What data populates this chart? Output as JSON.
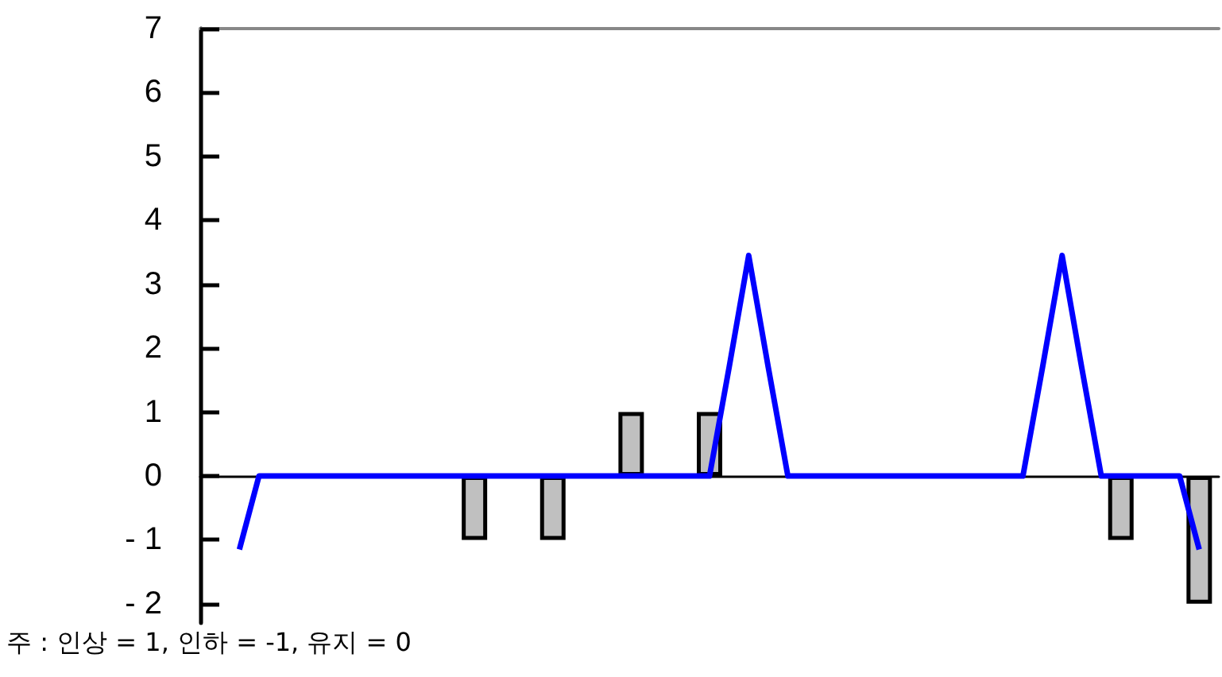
{
  "chart_data": {
    "type": "bar",
    "categories": [
      null,
      null,
      null,
      null,
      null,
      null,
      null,
      null,
      null,
      null,
      null,
      null,
      null,
      null,
      null,
      null,
      null,
      null,
      null,
      null,
      null,
      null,
      null,
      null,
      null,
      null,
      null,
      null,
      null,
      null,
      null,
      null,
      null,
      null,
      null,
      null,
      null,
      null,
      null,
      null,
      null,
      null,
      null,
      null,
      null,
      null,
      null,
      null,
      null,
      null,
      null,
      null,
      null
    ],
    "ylim": [
      -2.3,
      7
    ],
    "yticks": [
      {
        "value": -2,
        "label": "- 2"
      },
      {
        "value": -1,
        "label": "- 1"
      },
      0,
      1,
      2,
      3,
      4,
      5,
      6,
      7
    ],
    "tick_labels": "y",
    "series": [
      {
        "color": "#c0c0c0",
        "values": [
          0,
          0,
          0,
          0,
          0,
          0,
          0,
          0,
          0,
          0,
          0,
          0,
          0,
          0,
          -1,
          0,
          0,
          0,
          -1,
          0,
          0,
          0,
          1,
          0,
          0,
          0,
          1,
          0,
          0,
          0,
          0,
          0,
          0,
          0,
          0,
          0,
          0,
          0,
          0,
          0,
          0,
          0,
          0,
          0,
          0,
          0,
          0,
          -1,
          0,
          0,
          0,
          -2,
          0
        ]
      },
      {
        "type": "line",
        "color": "#0000ff",
        "marker": "none",
        "line_style": "solid",
        "values": [
          null,
          null,
          -1.15,
          0,
          0,
          0,
          0,
          0,
          0,
          0,
          0,
          0,
          0,
          0,
          0,
          0,
          0,
          0,
          0,
          0,
          0,
          0,
          0,
          0,
          0,
          0,
          0,
          1.7,
          3.45,
          1.7,
          0,
          0,
          0,
          0,
          0,
          0,
          0,
          0,
          0,
          0,
          0,
          0,
          0,
          1.7,
          3.45,
          1.7,
          0,
          0,
          0,
          0,
          0,
          -1.15,
          null
        ]
      }
    ],
    "annotations": [
      "주 : 인상 = 1, 인하 = -1, 유지 = 0"
    ]
  }
}
